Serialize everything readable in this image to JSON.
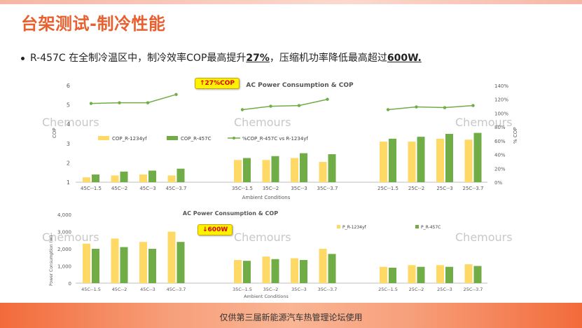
{
  "slide": {
    "title": "台架测试-制冷性能",
    "bullet_pre": "R-457C 在全制冷温区中，制冷效率COP最高提升",
    "bullet_hl1": "27%",
    "bullet_mid": "，压缩机功率降低最高超过",
    "bullet_hl2": "600W.",
    "footer": "仅供第三届新能源汽车热管理论坛使用",
    "watermark": "Chemours"
  },
  "colors": {
    "accent": "#e8602f",
    "r1234yf": "#ffd966",
    "r457c": "#70ad47",
    "callout_bg": "#fff200",
    "callout_text": "#dd0000"
  },
  "callouts": {
    "cop": "↑27%COP",
    "power": "↓600W"
  },
  "chart_data": [
    {
      "type": "bar",
      "title": "AC Power Consumption & COP",
      "xlabel": "Ambient Conditions",
      "ylabel": "COP",
      "y2label": "% COP",
      "ylim": [
        1,
        6
      ],
      "yticks": [
        1,
        2,
        3,
        4,
        5,
        6
      ],
      "y2lim": [
        0,
        140
      ],
      "y2ticks": [
        "0%",
        "20%",
        "40%",
        "60%",
        "80%",
        "100%",
        "120%",
        "140%"
      ],
      "categories": [
        "45C--1.5",
        "45C--2",
        "45C--3",
        "45C--3.7",
        "35C--1.5",
        "35C--2",
        "35C--3",
        "35C--3.7",
        "25C--1.5",
        "25C--2",
        "25C--3",
        "25C--3.7"
      ],
      "series": [
        {
          "name": "COP_R-1234yf",
          "kind": "bar",
          "values": [
            1.25,
            1.35,
            1.4,
            1.35,
            2.15,
            2.15,
            2.25,
            2.05,
            3.1,
            3.1,
            3.25,
            3.2
          ]
        },
        {
          "name": "COP_R-457C",
          "kind": "bar",
          "values": [
            1.4,
            1.55,
            1.6,
            1.7,
            2.25,
            2.35,
            2.5,
            2.45,
            3.25,
            3.35,
            3.5,
            3.55
          ]
        },
        {
          "name": "%COP_R-457C vs R-1234yf",
          "kind": "line",
          "axis": "right",
          "values": [
            114,
            115,
            115,
            127,
            105,
            110,
            111,
            120,
            105,
            109,
            108,
            111
          ]
        }
      ],
      "legend": "top-left",
      "grid": false
    },
    {
      "type": "bar",
      "title": "AC Power Consumption & COP",
      "xlabel": "Ambient Conditions",
      "ylabel": "Power Consumption (W)",
      "ylim": [
        0,
        4000
      ],
      "yticks": [
        "0",
        "1,000",
        "2,000",
        "3,000",
        "4,000"
      ],
      "categories": [
        "45C--1.5",
        "45C--2",
        "45C--3",
        "45C--3.7",
        "35C--1.5",
        "35C--2",
        "35C--3",
        "35C--3.7",
        "25C--1.5",
        "25C--2",
        "25C--3",
        "25C--3.7"
      ],
      "series": [
        {
          "name": "P_R-1234yf",
          "values": [
            2300,
            2600,
            2400,
            3000,
            1350,
            1550,
            1450,
            2000,
            950,
            1050,
            1050,
            1100
          ]
        },
        {
          "name": "P_R-457C",
          "values": [
            2000,
            2100,
            2000,
            2400,
            1300,
            1400,
            1350,
            1700,
            900,
            950,
            950,
            1000
          ]
        }
      ],
      "legend": "top-right",
      "grid": false
    }
  ]
}
